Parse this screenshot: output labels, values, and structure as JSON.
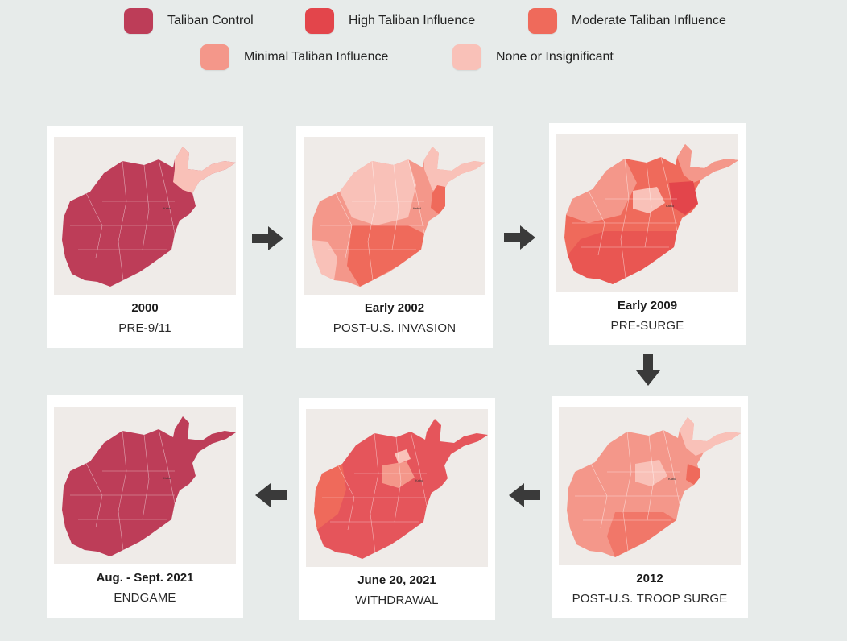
{
  "legend": [
    {
      "label": "Taliban Control",
      "color": "#bd3d58"
    },
    {
      "label": "High Taliban Influence",
      "color": "#e3454b"
    },
    {
      "label": "Moderate Taliban Influence",
      "color": "#ef6a5b"
    },
    {
      "label": "Minimal Taliban Influence",
      "color": "#f4978a"
    },
    {
      "label": "None or Insignificant",
      "color": "#f9c1b8"
    }
  ],
  "panels": [
    {
      "year": "2000",
      "subtitle": "PRE-9/11"
    },
    {
      "year": "Early 2002",
      "subtitle": "POST-U.S. INVASION"
    },
    {
      "year": "Early 2009",
      "subtitle": "PRE-SURGE"
    },
    {
      "year": "2012",
      "subtitle": "POST-U.S. TROOP SURGE"
    },
    {
      "year": "June 20, 2021",
      "subtitle": "WITHDRAWAL"
    },
    {
      "year": "Aug. - Sept. 2021",
      "subtitle": "ENDGAME"
    }
  ],
  "map_labels": {
    "kabul": "Kabul"
  },
  "colors": {
    "background": "#e7ebea",
    "card": "#ffffff",
    "map_background": "#efebe8",
    "arrow": "#3a3a3a"
  }
}
